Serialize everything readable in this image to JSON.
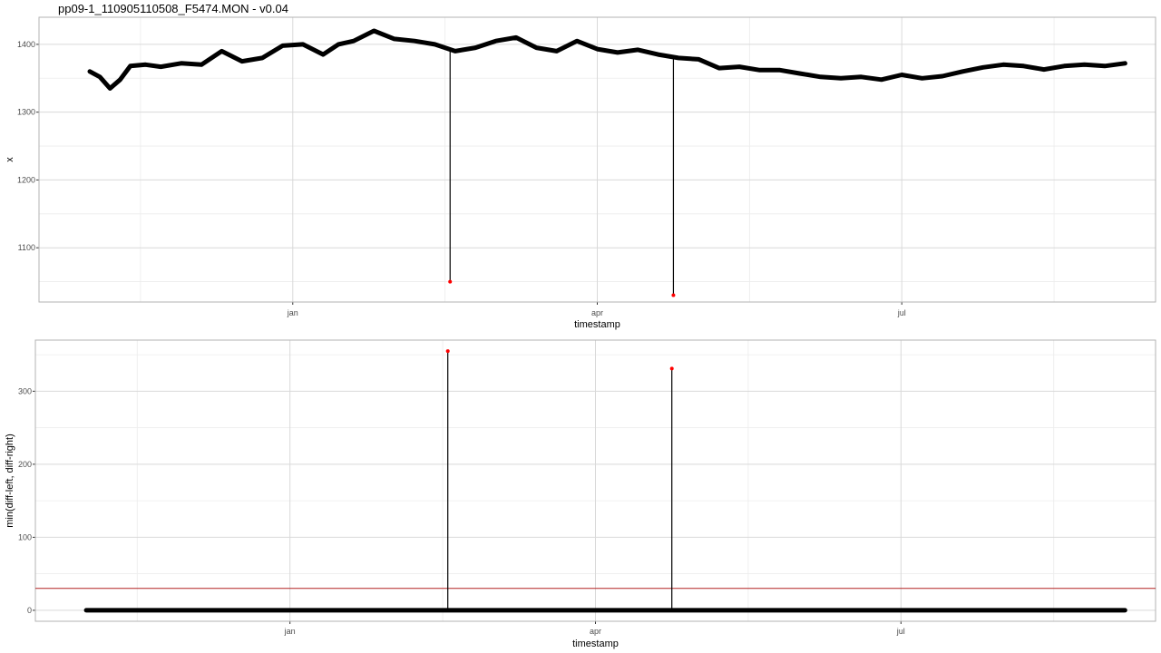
{
  "title": "pp09-1_110905110508_F5474.MON - v0.04",
  "colors": {
    "line": "#000000",
    "outlier": "#ff0000",
    "threshold": "#b22222",
    "grid_major": "#d9d9d9",
    "grid_minor": "#ececec",
    "panel_border": "#b3b3b3"
  },
  "chart_data": [
    {
      "type": "line",
      "xlabel": "timestamp",
      "ylabel": "x",
      "x_ticks": [
        "jan",
        "apr",
        "jul"
      ],
      "x_tick_pos": [
        4.0,
        7.0,
        10.0
      ],
      "xlim": [
        1.5,
        12.5
      ],
      "ylim": [
        1020,
        1440
      ],
      "y_ticks": [
        1100,
        1200,
        1300,
        1400
      ],
      "grid": true,
      "series": [
        {
          "x": [
            2.0,
            2.1,
            2.2,
            2.3,
            2.4,
            2.55,
            2.7,
            2.9,
            3.1,
            3.3,
            3.5,
            3.7,
            3.9,
            4.1,
            4.3,
            4.45,
            4.6,
            4.8,
            5.0,
            5.2,
            5.4,
            5.6,
            5.8,
            6.0,
            6.2,
            6.4,
            6.6,
            6.8,
            7.0,
            7.2,
            7.4,
            7.6,
            7.8,
            8.0,
            8.2,
            8.4,
            8.6,
            8.8,
            9.0,
            9.2,
            9.4,
            9.6,
            9.8,
            10.0,
            10.2,
            10.4,
            10.6,
            10.8,
            11.0,
            11.2,
            11.4,
            11.6,
            11.8,
            12.0,
            12.2
          ],
          "y": [
            1360,
            1352,
            1335,
            1348,
            1368,
            1370,
            1367,
            1372,
            1370,
            1390,
            1375,
            1380,
            1398,
            1400,
            1385,
            1400,
            1405,
            1420,
            1408,
            1405,
            1400,
            1390,
            1395,
            1405,
            1410,
            1395,
            1390,
            1405,
            1393,
            1388,
            1392,
            1385,
            1380,
            1378,
            1365,
            1367,
            1362,
            1362,
            1357,
            1352,
            1350,
            1352,
            1348,
            1355,
            1350,
            1353,
            1360,
            1366,
            1370,
            1368,
            1363,
            1368,
            1370,
            1368,
            1372
          ]
        }
      ],
      "outliers": [
        {
          "x": 5.55,
          "y": 1050
        },
        {
          "x": 7.75,
          "y": 1030
        }
      ]
    },
    {
      "type": "line",
      "xlabel": "timestamp",
      "ylabel": "min(diff-left, diff-right)",
      "x_ticks": [
        "jan",
        "apr",
        "jul"
      ],
      "x_tick_pos": [
        4.0,
        7.0,
        10.0
      ],
      "xlim": [
        1.5,
        12.5
      ],
      "ylim": [
        -15,
        370
      ],
      "y_ticks": [
        0,
        100,
        200,
        300
      ],
      "threshold": 30,
      "grid": true,
      "series": [
        {
          "x": [
            2.0,
            12.2
          ],
          "y": [
            0,
            0
          ]
        }
      ],
      "outliers": [
        {
          "x": 5.55,
          "y": 355
        },
        {
          "x": 7.75,
          "y": 331
        }
      ]
    }
  ]
}
